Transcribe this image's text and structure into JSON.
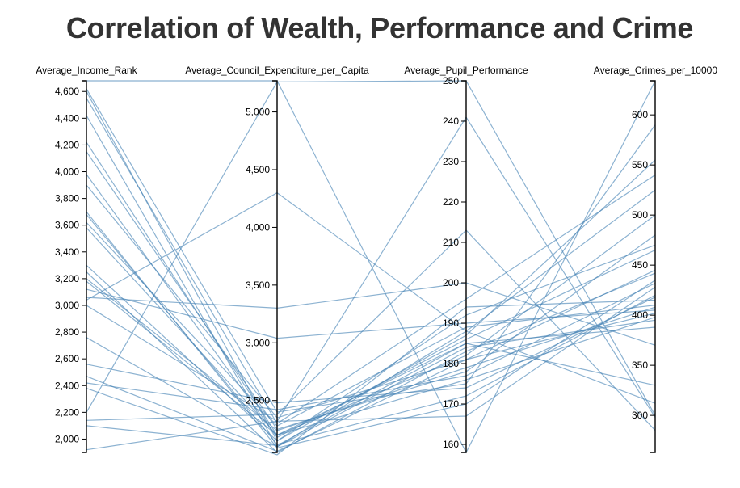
{
  "title": "Correlation of Wealth, Performance and Crime",
  "colors": {
    "line": "#4682b4",
    "title": "#333333",
    "axis": "#000000"
  },
  "chart_data": {
    "type": "parallel_coordinates",
    "title": "Correlation of Wealth, Performance and Crime",
    "grid": false,
    "dimensions": [
      {
        "name": "Average_Income_Rank",
        "domain": [
          1900,
          4680
        ],
        "ticks": [
          2000,
          2200,
          2400,
          2600,
          2800,
          3000,
          3200,
          3400,
          3600,
          3800,
          4000,
          4200,
          4400,
          4600
        ],
        "tick_labels": [
          "2,000",
          "2,200",
          "2,400",
          "2,600",
          "2,800",
          "3,000",
          "3,200",
          "3,400",
          "3,600",
          "3,800",
          "4,000",
          "4,200",
          "4,400",
          "4,600"
        ],
        "tick_side": "left"
      },
      {
        "name": "Average_Council_Expenditure_per_Capita",
        "domain": [
          2050,
          5270
        ],
        "ticks": [
          2500,
          3000,
          3500,
          4000,
          4500,
          5000
        ],
        "tick_labels": [
          "2,500",
          "3,000",
          "3,500",
          "4,000",
          "4,500",
          "5,000"
        ],
        "tick_side": "left"
      },
      {
        "name": "Average_Pupil_Performance",
        "domain": [
          158,
          250
        ],
        "ticks": [
          160,
          170,
          180,
          190,
          200,
          210,
          220,
          230,
          240,
          250
        ],
        "tick_labels": [
          "160",
          "170",
          "180",
          "190",
          "200",
          "210",
          "220",
          "230",
          "240",
          "250"
        ],
        "tick_side": "left"
      },
      {
        "name": "Average_Crimes_per_10000",
        "domain": [
          263,
          634
        ],
        "ticks": [
          300,
          350,
          400,
          450,
          500,
          550,
          600
        ],
        "tick_labels": [
          "300",
          "350",
          "400",
          "450",
          "500",
          "550",
          "600"
        ],
        "tick_side": "left"
      }
    ],
    "records": [
      [
        4680,
        5270,
        158,
        634
      ],
      [
        4620,
        2400,
        175,
        590
      ],
      [
        4600,
        2150,
        187,
        555
      ],
      [
        4550,
        2300,
        196,
        540
      ],
      [
        4420,
        2100,
        188,
        525
      ],
      [
        4220,
        2200,
        182,
        500
      ],
      [
        4150,
        2250,
        178,
        480
      ],
      [
        3980,
        2180,
        186,
        465
      ],
      [
        3900,
        2350,
        181,
        445
      ],
      [
        3700,
        2090,
        170,
        435
      ],
      [
        3680,
        2120,
        172,
        420
      ],
      [
        3620,
        2280,
        189,
        410
      ],
      [
        3580,
        2200,
        176,
        398
      ],
      [
        3300,
        2150,
        192,
        470
      ],
      [
        3250,
        2050,
        183,
        442
      ],
      [
        3200,
        2240,
        179,
        408
      ],
      [
        3180,
        2200,
        185,
        388
      ],
      [
        3120,
        3040,
        190,
        405
      ],
      [
        3060,
        3300,
        200,
        370
      ],
      [
        3040,
        4300,
        188,
        312
      ],
      [
        3000,
        2320,
        167,
        428
      ],
      [
        2760,
        2100,
        184,
        395
      ],
      [
        2560,
        2480,
        174,
        418
      ],
      [
        2470,
        2060,
        181,
        402
      ],
      [
        2420,
        2420,
        177,
        432
      ],
      [
        2380,
        2030,
        194,
        415
      ],
      [
        2140,
        2380,
        213,
        285
      ],
      [
        1920,
        2320,
        241,
        298
      ],
      [
        2200,
        5260,
        250,
        300
      ],
      [
        2100,
        2110,
        185,
        330
      ]
    ]
  }
}
